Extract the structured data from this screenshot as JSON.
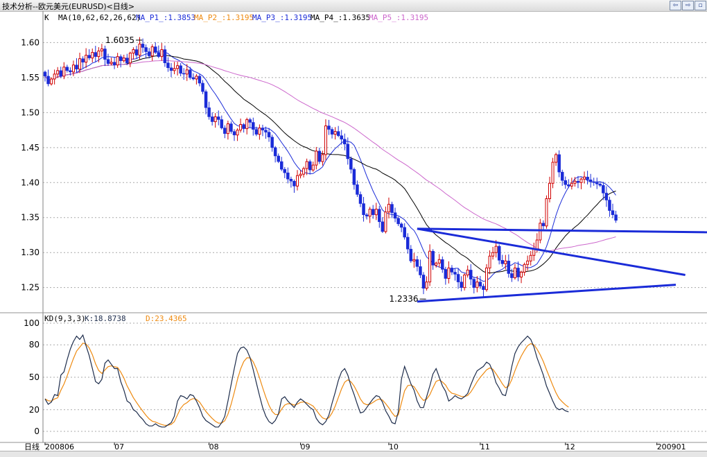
{
  "window": {
    "title": "技术分析--欧元美元(EURUSD)<日线>"
  },
  "colors": {
    "up": "#d00000",
    "down": "#1a2bd8",
    "ma1": "#1a2bd8",
    "ma2": "#000000",
    "ma5": "#cc66cc",
    "k_line": "#1c2b4a",
    "d_line": "#ee8a10",
    "grid": "#a8a8a8",
    "trend": "#1a2bd8"
  },
  "chart_data": [
    {
      "type": "candlestick",
      "label": "K",
      "ma_params": "MA(10,62,62,26,62)",
      "legend": [
        {
          "text": "MA_P1_:1.3853",
          "color": "#1a2bd8"
        },
        {
          "text": "MA_P2_:1.3195",
          "color": "#ee8a10"
        },
        {
          "text": "MA_P3_:1.3195",
          "color": "#1a2bd8"
        },
        {
          "text": "MA_P4_:1.3635",
          "color": "#000000"
        },
        {
          "text": "MA_P5_:1.3195",
          "color": "#cc66cc"
        }
      ],
      "ylim": [
        1.215,
        1.645
      ],
      "yticks": [
        "1.25",
        "1.30",
        "1.35",
        "1.40",
        "1.45",
        "1.50",
        "1.55",
        "1.60"
      ],
      "annotations": [
        {
          "text": "1.6035",
          "value": 1.6035,
          "bar": 31
        },
        {
          "text": "1.2336",
          "value": 1.2336,
          "bar": 121
        }
      ],
      "close": [
        1.552,
        1.541,
        1.548,
        1.555,
        1.56,
        1.552,
        1.565,
        1.56,
        1.558,
        1.568,
        1.562,
        1.577,
        1.572,
        1.582,
        1.578,
        1.586,
        1.58,
        1.588,
        1.591,
        1.576,
        1.57,
        1.572,
        1.568,
        1.58,
        1.574,
        1.578,
        1.571,
        1.585,
        1.59,
        1.582,
        1.598,
        1.593,
        1.587,
        1.581,
        1.594,
        1.586,
        1.58,
        1.59,
        1.571,
        1.564,
        1.56,
        1.563,
        1.567,
        1.556,
        1.555,
        1.561,
        1.55,
        1.548,
        1.552,
        1.542,
        1.53,
        1.507,
        1.494,
        1.487,
        1.494,
        1.49,
        1.478,
        1.47,
        1.484,
        1.473,
        1.468,
        1.475,
        1.483,
        1.477,
        1.49,
        1.486,
        1.476,
        1.469,
        1.478,
        1.475,
        1.472,
        1.465,
        1.45,
        1.438,
        1.43,
        1.419,
        1.414,
        1.405,
        1.402,
        1.395,
        1.41,
        1.412,
        1.42,
        1.43,
        1.418,
        1.425,
        1.445,
        1.43,
        1.44,
        1.481,
        1.476,
        1.469,
        1.473,
        1.467,
        1.462,
        1.455,
        1.434,
        1.419,
        1.397,
        1.383,
        1.37,
        1.354,
        1.352,
        1.362,
        1.354,
        1.362,
        1.344,
        1.33,
        1.358,
        1.369,
        1.357,
        1.349,
        1.341,
        1.336,
        1.322,
        1.305,
        1.288,
        1.29,
        1.28,
        1.268,
        1.249,
        1.258,
        1.302,
        1.282,
        1.285,
        1.29,
        1.276,
        1.263,
        1.278,
        1.272,
        1.269,
        1.258,
        1.25,
        1.268,
        1.275,
        1.262,
        1.25,
        1.258,
        1.252,
        1.247,
        1.278,
        1.295,
        1.3,
        1.309,
        1.289,
        1.284,
        1.288,
        1.27,
        1.264,
        1.278,
        1.265,
        1.272,
        1.283,
        1.288,
        1.296,
        1.305,
        1.318,
        1.342,
        1.338,
        1.377,
        1.399,
        1.429,
        1.44,
        1.415,
        1.403,
        1.397,
        1.395,
        1.399,
        1.402,
        1.4,
        1.405,
        1.408,
        1.404,
        1.401,
        1.4,
        1.398,
        1.396,
        1.385,
        1.375,
        1.36,
        1.354,
        1.346
      ],
      "series_ma": [
        {
          "color": "#1a2bd8",
          "period": 10
        },
        {
          "color": "#000000",
          "period": 26
        },
        {
          "color": "#cc66cc",
          "period": 62
        }
      ],
      "trendlines": [
        {
          "from": [
            118,
            1.334
          ],
          "to": [
            210,
            1.329
          ]
        },
        {
          "from": [
            118,
            1.334
          ],
          "to": [
            203,
            1.268
          ]
        },
        {
          "from": [
            118,
            1.23
          ],
          "to": [
            200,
            1.254
          ]
        }
      ]
    },
    {
      "type": "line",
      "label": "KD(9,3,3)",
      "k_text": "K:18.8738",
      "d_text": "D:23.4365",
      "ylim": [
        0,
        100
      ],
      "yticks": [
        "0",
        "20",
        "50",
        "80",
        "100"
      ],
      "k": [
        30,
        25,
        27,
        34,
        33,
        52,
        55,
        66,
        76,
        83,
        88,
        85,
        89,
        79,
        70,
        58,
        46,
        44,
        48,
        63,
        66,
        62,
        58,
        58,
        46,
        38,
        28,
        26,
        20,
        18,
        14,
        11,
        7,
        5,
        5,
        7,
        5,
        4,
        4,
        6,
        8,
        14,
        28,
        33,
        32,
        30,
        34,
        33,
        28,
        22,
        14,
        10,
        8,
        6,
        4,
        4,
        8,
        14,
        28,
        43,
        58,
        72,
        77,
        78,
        75,
        68,
        57,
        45,
        33,
        22,
        14,
        9,
        7,
        10,
        16,
        30,
        32,
        28,
        25,
        22,
        27,
        30,
        28,
        25,
        22,
        20,
        12,
        8,
        6,
        9,
        15,
        26,
        36,
        47,
        55,
        58,
        52,
        42,
        34,
        25,
        17,
        18,
        22,
        26,
        30,
        33,
        32,
        27,
        19,
        14,
        8,
        7,
        18,
        48,
        60,
        52,
        44,
        38,
        28,
        22,
        22,
        32,
        42,
        53,
        58,
        50,
        42,
        37,
        28,
        30,
        33,
        31,
        30,
        32,
        35,
        43,
        50,
        56,
        58,
        60,
        64,
        62,
        55,
        45,
        40,
        34,
        33,
        45,
        60,
        72,
        78,
        82,
        85,
        88,
        85,
        78,
        68,
        60,
        52,
        42,
        35,
        28,
        22,
        20,
        21,
        19,
        18
      ]
    },
    {
      "type": "x-axis",
      "label": "日线",
      "ticks": [
        {
          "text": "200806",
          "bar": 0
        },
        {
          "text": "07",
          "bar": 22
        },
        {
          "text": "08",
          "bar": 52
        },
        {
          "text": "09",
          "bar": 81
        },
        {
          "text": "10",
          "bar": 109
        },
        {
          "text": "11",
          "bar": 138
        },
        {
          "text": "12",
          "bar": 165
        },
        {
          "text": "200901",
          "bar": 194
        }
      ]
    }
  ]
}
